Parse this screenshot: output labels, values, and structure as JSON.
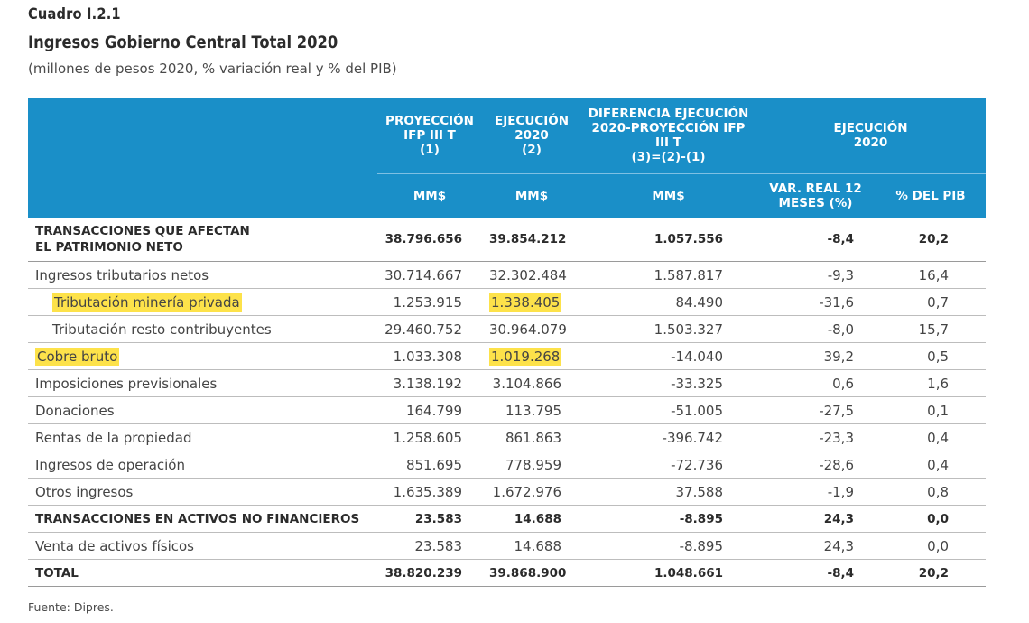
{
  "title": {
    "label": "Cuadro I.2.1",
    "main": "Ingresos Gobierno Central Total 2020",
    "sub": "(millones de pesos 2020, % variación real y % del PIB)"
  },
  "header": {
    "col1": [
      "PROYECCIÓN",
      "IFP III T",
      "(1)"
    ],
    "col2": [
      "EJECUCIÓN",
      "2020",
      "(2)"
    ],
    "col3": [
      "DIFERENCIA EJECUCIÓN",
      "2020-PROYECCIÓN IFP",
      "III T",
      "(3)=(2)-(1)"
    ],
    "col45": [
      "EJECUCIÓN",
      "2020"
    ],
    "units": {
      "u1": "MM$",
      "u2": "MM$",
      "u3": "MM$",
      "u4": [
        "VAR. REAL 12",
        "MESES (%)"
      ],
      "u5": "% DEL PIB"
    }
  },
  "rows": [
    {
      "label": [
        "TRANSACCIONES QUE AFECTAN",
        "EL PATRIMONIO NETO"
      ],
      "proy": "38.796.656",
      "ejec": "39.854.212",
      "dif": "1.057.556",
      "var": "-8,4",
      "pib": "20,2"
    },
    {
      "label": "Ingresos tributarios netos",
      "proy": "30.714.667",
      "ejec": "32.302.484",
      "dif": "1.587.817",
      "var": "-9,3",
      "pib": "16,4"
    },
    {
      "label": "Tributación minería privada",
      "proy": "1.253.915",
      "ejec": "1.338.405",
      "dif": "84.490",
      "var": "-31,6",
      "pib": "0,7"
    },
    {
      "label": "Tributación resto contribuyentes",
      "proy": "29.460.752",
      "ejec": "30.964.079",
      "dif": "1.503.327",
      "var": "-8,0",
      "pib": "15,7"
    },
    {
      "label": "Cobre bruto",
      "proy": "1.033.308",
      "ejec": "1.019.268",
      "dif": "-14.040",
      "var": "39,2",
      "pib": "0,5"
    },
    {
      "label": "Imposiciones previsionales",
      "proy": "3.138.192",
      "ejec": "3.104.866",
      "dif": "-33.325",
      "var": "0,6",
      "pib": "1,6"
    },
    {
      "label": "Donaciones",
      "proy": "164.799",
      "ejec": "113.795",
      "dif": "-51.005",
      "var": "-27,5",
      "pib": "0,1"
    },
    {
      "label": "Rentas de la propiedad",
      "proy": "1.258.605",
      "ejec": "861.863",
      "dif": "-396.742",
      "var": "-23,3",
      "pib": "0,4"
    },
    {
      "label": "Ingresos de operación",
      "proy": "851.695",
      "ejec": "778.959",
      "dif": "-72.736",
      "var": "-28,6",
      "pib": "0,4"
    },
    {
      "label": "Otros ingresos",
      "proy": "1.635.389",
      "ejec": "1.672.976",
      "dif": "37.588",
      "var": "-1,9",
      "pib": "0,8"
    },
    {
      "label": "TRANSACCIONES EN ACTIVOS NO FINANCIEROS",
      "proy": "23.583",
      "ejec": "14.688",
      "dif": "-8.895",
      "var": "24,3",
      "pib": "0,0"
    },
    {
      "label": "Venta de activos físicos",
      "proy": "23.583",
      "ejec": "14.688",
      "dif": "-8.895",
      "var": "24,3",
      "pib": "0,0"
    },
    {
      "label": "TOTAL",
      "proy": "38.820.239",
      "ejec": "39.868.900",
      "dif": "1.048.661",
      "var": "-8,4",
      "pib": "20,2"
    }
  ],
  "highlight_color": "#fde24a",
  "header_color": "#1a8fc8",
  "source": "Fuente: Dipres."
}
